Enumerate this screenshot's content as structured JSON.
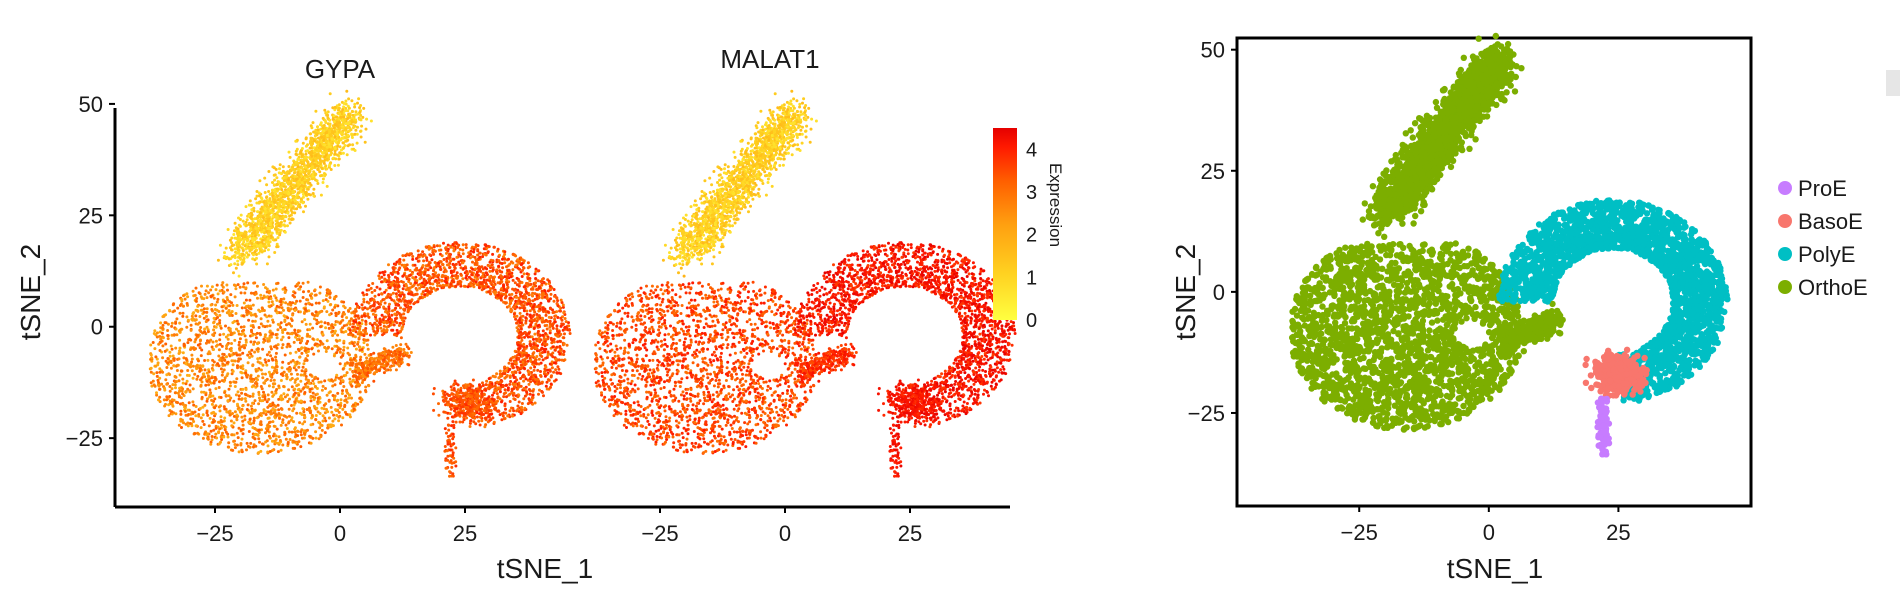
{
  "chart_data": [
    {
      "type": "scatter",
      "title": "GYPA",
      "xlabel": "tSNE_1",
      "ylabel": "tSNE_2",
      "xticks": [
        -25,
        0,
        25
      ],
      "yticks": [
        50,
        25,
        0,
        -25
      ],
      "xlim": [
        -44,
        44
      ],
      "ylim": [
        -40,
        52
      ],
      "color_by": "Expression",
      "points_note": "expression ~0.5-1.5 on upper cluster, ~2-3.5 on lower clusters"
    },
    {
      "type": "scatter",
      "title": "MALAT1",
      "xlabel": "tSNE_1",
      "xticks": [
        -25,
        0,
        25
      ],
      "xlim": [
        -44,
        44
      ],
      "ylim": [
        -40,
        52
      ],
      "color_by": "Expression",
      "points_note": "expression ~0.5-1.5 on upper cluster, ~3-4 on lower clusters"
    },
    {
      "type": "scatter",
      "xlabel": "tSNE_1",
      "ylabel": "tSNE_2",
      "xticks": [
        -25,
        0,
        25
      ],
      "yticks": [
        50,
        25,
        0,
        -25
      ],
      "xlim": [
        -48,
        50
      ],
      "ylim": [
        -44,
        52
      ],
      "legend": {
        "position": "right",
        "entries": [
          {
            "name": "ProE",
            "color": "#c77cff"
          },
          {
            "name": "BasoE",
            "color": "#f8766d"
          },
          {
            "name": "PolyE",
            "color": "#00bfc4"
          },
          {
            "name": "OrthoE",
            "color": "#7cae00"
          }
        ]
      }
    }
  ],
  "colorbar": {
    "title": "Expression",
    "ticks": [
      "4",
      "3",
      "2",
      "1",
      "0"
    ],
    "range": [
      0,
      4.5
    ],
    "colors": [
      "#ffff40",
      "#ffd020",
      "#ff9f10",
      "#ff6000",
      "#ff1a00",
      "#e50000"
    ]
  }
}
